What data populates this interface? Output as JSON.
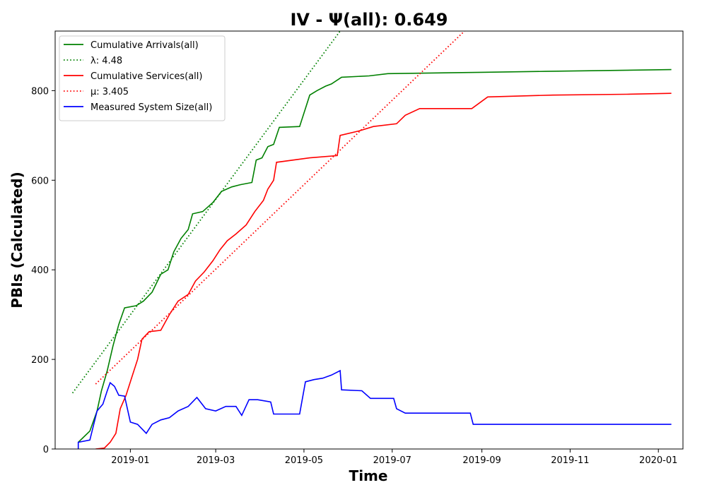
{
  "chart_data": {
    "type": "line",
    "title": "IV -  Ψ(all): 0.649",
    "xlabel": "Time",
    "ylabel": "PBIs (Calculated)",
    "xlim": [
      "2018-11-10",
      "2020-01-18"
    ],
    "ylim": [
      0,
      933
    ],
    "x_ticks": [
      "2019-01",
      "2019-03",
      "2019-05",
      "2019-07",
      "2019-09",
      "2019-11",
      "2020-01"
    ],
    "y_ticks": [
      0,
      200,
      400,
      600,
      800
    ],
    "grid": false,
    "legend_position": "upper-left",
    "legend": [
      {
        "label": "Cumulative Arrivals(all)",
        "color": "#008000",
        "style": "solid"
      },
      {
        "label": "λ: 4.48",
        "color": "#008000",
        "style": "dotted"
      },
      {
        "label": "Cumulative Services(all)",
        "color": "#ff0000",
        "style": "solid"
      },
      {
        "label": "μ: 3.405",
        "color": "#ff0000",
        "style": "dotted"
      },
      {
        "label": "Measured System Size(all)",
        "color": "#0000ff",
        "style": "solid"
      }
    ],
    "series": [
      {
        "name": "Cumulative Arrivals(all)",
        "color": "#008000",
        "style": "solid",
        "points": [
          [
            "2018-11-26",
            15
          ],
          [
            "2018-12-04",
            40
          ],
          [
            "2018-12-09",
            85
          ],
          [
            "2018-12-12",
            130
          ],
          [
            "2018-12-16",
            175
          ],
          [
            "2018-12-20",
            230
          ],
          [
            "2018-12-24",
            278
          ],
          [
            "2018-12-28",
            315
          ],
          [
            "2019-01-05",
            320
          ],
          [
            "2019-01-10",
            330
          ],
          [
            "2019-01-16",
            350
          ],
          [
            "2019-01-22",
            390
          ],
          [
            "2019-01-27",
            400
          ],
          [
            "2019-01-31",
            440
          ],
          [
            "2019-02-05",
            470
          ],
          [
            "2019-02-10",
            490
          ],
          [
            "2019-02-13",
            525
          ],
          [
            "2019-02-20",
            530
          ],
          [
            "2019-02-27",
            550
          ],
          [
            "2019-03-05",
            575
          ],
          [
            "2019-03-12",
            585
          ],
          [
            "2019-03-18",
            590
          ],
          [
            "2019-03-26",
            595
          ],
          [
            "2019-03-29",
            645
          ],
          [
            "2019-04-02",
            650
          ],
          [
            "2019-04-06",
            675
          ],
          [
            "2019-04-10",
            680
          ],
          [
            "2019-04-14",
            718
          ],
          [
            "2019-04-28",
            720
          ],
          [
            "2019-05-02",
            760
          ],
          [
            "2019-05-05",
            790
          ],
          [
            "2019-05-10",
            800
          ],
          [
            "2019-05-16",
            810
          ],
          [
            "2019-05-20",
            815
          ],
          [
            "2019-05-27",
            830
          ],
          [
            "2019-06-15",
            833
          ],
          [
            "2019-06-28",
            838
          ],
          [
            "2019-09-01",
            841
          ],
          [
            "2019-10-15",
            843
          ],
          [
            "2020-01-10",
            847
          ]
        ]
      },
      {
        "name": "λ: 4.48",
        "color": "#008000",
        "style": "dotted",
        "points": [
          [
            "2018-11-22",
            125
          ],
          [
            "2019-05-26",
            933
          ]
        ]
      },
      {
        "name": "Cumulative Services(all)",
        "color": "#ff0000",
        "style": "solid",
        "points": [
          [
            "2018-12-08",
            0
          ],
          [
            "2018-12-14",
            2
          ],
          [
            "2018-12-18",
            15
          ],
          [
            "2018-12-22",
            35
          ],
          [
            "2018-12-25",
            90
          ],
          [
            "2018-12-29",
            120
          ],
          [
            "2019-01-02",
            160
          ],
          [
            "2019-01-06",
            200
          ],
          [
            "2019-01-09",
            245
          ],
          [
            "2019-01-14",
            262
          ],
          [
            "2019-01-22",
            265
          ],
          [
            "2019-01-28",
            300
          ],
          [
            "2019-02-03",
            330
          ],
          [
            "2019-02-10",
            345
          ],
          [
            "2019-02-15",
            375
          ],
          [
            "2019-02-21",
            395
          ],
          [
            "2019-02-27",
            420
          ],
          [
            "2019-03-04",
            445
          ],
          [
            "2019-03-09",
            465
          ],
          [
            "2019-03-15",
            480
          ],
          [
            "2019-03-22",
            500
          ],
          [
            "2019-03-28",
            530
          ],
          [
            "2019-04-03",
            555
          ],
          [
            "2019-04-06",
            580
          ],
          [
            "2019-04-10",
            600
          ],
          [
            "2019-04-12",
            640
          ],
          [
            "2019-05-05",
            650
          ],
          [
            "2019-05-24",
            655
          ],
          [
            "2019-05-26",
            700
          ],
          [
            "2019-06-08",
            710
          ],
          [
            "2019-06-18",
            720
          ],
          [
            "2019-07-04",
            726
          ],
          [
            "2019-07-10",
            745
          ],
          [
            "2019-07-20",
            760
          ],
          [
            "2019-08-25",
            760
          ],
          [
            "2019-09-05",
            786
          ],
          [
            "2019-10-20",
            790
          ],
          [
            "2019-12-10",
            792
          ],
          [
            "2020-01-10",
            794
          ]
        ]
      },
      {
        "name": "μ: 3.405",
        "color": "#ff0000",
        "style": "dotted",
        "points": [
          [
            "2018-12-08",
            145
          ],
          [
            "2019-08-20",
            933
          ]
        ]
      },
      {
        "name": "Measured System Size(all)",
        "color": "#0000ff",
        "style": "solid",
        "points": [
          [
            "2018-11-26",
            0
          ],
          [
            "2018-11-26",
            15
          ],
          [
            "2018-12-04",
            20
          ],
          [
            "2018-12-09",
            85
          ],
          [
            "2018-12-13",
            100
          ],
          [
            "2018-12-16",
            130
          ],
          [
            "2018-12-18",
            148
          ],
          [
            "2018-12-21",
            140
          ],
          [
            "2018-12-24",
            120
          ],
          [
            "2018-12-28",
            118
          ],
          [
            "2019-01-01",
            60
          ],
          [
            "2019-01-06",
            55
          ],
          [
            "2019-01-12",
            35
          ],
          [
            "2019-01-16",
            55
          ],
          [
            "2019-01-22",
            65
          ],
          [
            "2019-01-28",
            70
          ],
          [
            "2019-02-03",
            85
          ],
          [
            "2019-02-10",
            95
          ],
          [
            "2019-02-16",
            115
          ],
          [
            "2019-02-22",
            90
          ],
          [
            "2019-03-01",
            85
          ],
          [
            "2019-03-08",
            95
          ],
          [
            "2019-03-15",
            95
          ],
          [
            "2019-03-19",
            75
          ],
          [
            "2019-03-24",
            110
          ],
          [
            "2019-03-30",
            110
          ],
          [
            "2019-04-08",
            105
          ],
          [
            "2019-04-10",
            78
          ],
          [
            "2019-04-28",
            78
          ],
          [
            "2019-05-02",
            150
          ],
          [
            "2019-05-08",
            155
          ],
          [
            "2019-05-14",
            158
          ],
          [
            "2019-05-20",
            165
          ],
          [
            "2019-05-26",
            175
          ],
          [
            "2019-05-27",
            132
          ],
          [
            "2019-06-10",
            130
          ],
          [
            "2019-06-16",
            113
          ],
          [
            "2019-07-02",
            113
          ],
          [
            "2019-07-04",
            90
          ],
          [
            "2019-07-10",
            80
          ],
          [
            "2019-08-24",
            80
          ],
          [
            "2019-08-26",
            55
          ],
          [
            "2019-10-01",
            55
          ],
          [
            "2019-11-15",
            55
          ],
          [
            "2020-01-10",
            55
          ]
        ]
      }
    ]
  }
}
